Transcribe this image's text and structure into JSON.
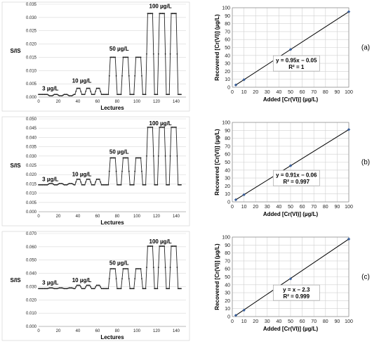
{
  "panels": [
    {
      "label": "(a)",
      "signal": {
        "type": "line",
        "ylabel": "S/IS",
        "xlabel": "Lectures",
        "xlim": [
          0,
          150
        ],
        "xticks": [
          0,
          20,
          40,
          60,
          80,
          100,
          120,
          140
        ],
        "ylim": [
          0,
          0.035
        ],
        "yticks": [
          "0.000",
          "0.005",
          "0.010",
          "0.015",
          "0.020",
          "0.025",
          "0.030",
          "0.035"
        ],
        "baseline": 0.001,
        "levels": [
          0.0005,
          0.0033,
          0.015,
          0.0315
        ],
        "annotations": [
          {
            "text": "3 µg/L",
            "x": 12,
            "y": 0.0025
          },
          {
            "text": "10 µg/L",
            "x": 44,
            "y": 0.0055
          },
          {
            "text": "50 µg/L",
            "x": 82,
            "y": 0.0175
          },
          {
            "text": "100 µg/L",
            "x": 124,
            "y": 0.0335
          }
        ]
      },
      "recovery": {
        "type": "scatter",
        "xlabel": "Added [Cr(VI)] (µg/L)",
        "ylabel": "Recovered [Cr(VI)] (µg/L)",
        "xlim": [
          0,
          100
        ],
        "xticks": [
          0,
          10,
          20,
          30,
          40,
          50,
          60,
          70,
          80,
          90,
          100
        ],
        "ylim": [
          0,
          100
        ],
        "yticks": [
          0,
          10,
          20,
          30,
          40,
          50,
          60,
          70,
          80,
          90,
          100
        ],
        "x": [
          3,
          10,
          50,
          100
        ],
        "y": [
          2.8,
          9.45,
          47.5,
          95
        ],
        "fit": {
          "slope": 0.95,
          "intercept": -0.05
        },
        "equation": "y = 0.95x − 0.05",
        "r2": "R² = 1"
      }
    },
    {
      "label": "(b)",
      "signal": {
        "type": "line",
        "ylabel": "S/IS",
        "xlabel": "Lectures",
        "xlim": [
          0,
          150
        ],
        "xticks": [
          0,
          20,
          40,
          60,
          80,
          100,
          120,
          140
        ],
        "ylim": [
          0,
          0.05
        ],
        "yticks": [
          "0.000",
          "0.005",
          "0.010",
          "0.015",
          "0.020",
          "0.025",
          "0.030",
          "0.035",
          "0.040",
          "0.045",
          "0.050"
        ],
        "baseline": 0.0145,
        "levels": [
          0.0152,
          0.0175,
          0.029,
          0.0455
        ],
        "annotations": [
          {
            "text": "3 µg/L",
            "x": 12,
            "y": 0.0165
          },
          {
            "text": "10 µg/L",
            "x": 44,
            "y": 0.0192
          },
          {
            "text": "50 µg/L",
            "x": 82,
            "y": 0.0312
          },
          {
            "text": "100 µg/L",
            "x": 124,
            "y": 0.0465
          }
        ]
      },
      "recovery": {
        "type": "scatter",
        "xlabel": "Added [Cr(VI)] (µg/L)",
        "ylabel": "Recovered [Cr(VI)] (µg/L)",
        "xlim": [
          0,
          100
        ],
        "xticks": [
          0,
          10,
          20,
          30,
          40,
          50,
          60,
          70,
          80,
          90,
          100
        ],
        "ylim": [
          0,
          100
        ],
        "yticks": [
          0,
          10,
          20,
          30,
          40,
          50,
          60,
          70,
          80,
          90,
          100
        ],
        "x": [
          3,
          10,
          50,
          100
        ],
        "y": [
          2.7,
          9.0,
          45.5,
          91
        ],
        "fit": {
          "slope": 0.91,
          "intercept": -0.06
        },
        "equation": "y = 0.91x − 0.06",
        "r2": "R² = 0.997"
      }
    },
    {
      "label": "(c)",
      "signal": {
        "type": "line",
        "ylabel": "S/IS",
        "xlabel": "Lectures",
        "xlim": [
          0,
          150
        ],
        "xticks": [
          0,
          20,
          40,
          60,
          80,
          100,
          120,
          140
        ],
        "ylim": [
          0,
          0.07
        ],
        "yticks": [
          "0.000",
          "0.010",
          "0.020",
          "0.030",
          "0.040",
          "0.050",
          "0.060",
          "0.070"
        ],
        "baseline": 0.0285,
        "levels": [
          0.029,
          0.031,
          0.0435,
          0.0605
        ],
        "annotations": [
          {
            "text": "3 µg/L",
            "x": 12,
            "y": 0.0315
          },
          {
            "text": "10 µg/L",
            "x": 44,
            "y": 0.0335
          },
          {
            "text": "50 µg/L",
            "x": 82,
            "y": 0.0465
          },
          {
            "text": "100 µg/L",
            "x": 124,
            "y": 0.0625
          }
        ]
      },
      "recovery": {
        "type": "scatter",
        "xlabel": "Added [Cr(VI)] (µg/L)",
        "ylabel": "Recovered [Cr(VI)] (µg/L)",
        "xlim": [
          0,
          100
        ],
        "xticks": [
          0,
          10,
          20,
          30,
          40,
          50,
          60,
          70,
          80,
          90,
          100
        ],
        "ylim": [
          0,
          100
        ],
        "yticks": [
          0,
          10,
          20,
          30,
          40,
          50,
          60,
          70,
          80,
          90,
          100
        ],
        "x": [
          3,
          10,
          50,
          100
        ],
        "y": [
          1.5,
          8.0,
          47.5,
          97.5
        ],
        "fit": {
          "slope": 1.0,
          "intercept": -2.3
        },
        "equation": "y = x − 2.3",
        "r2": "R² = 0.999"
      }
    }
  ]
}
